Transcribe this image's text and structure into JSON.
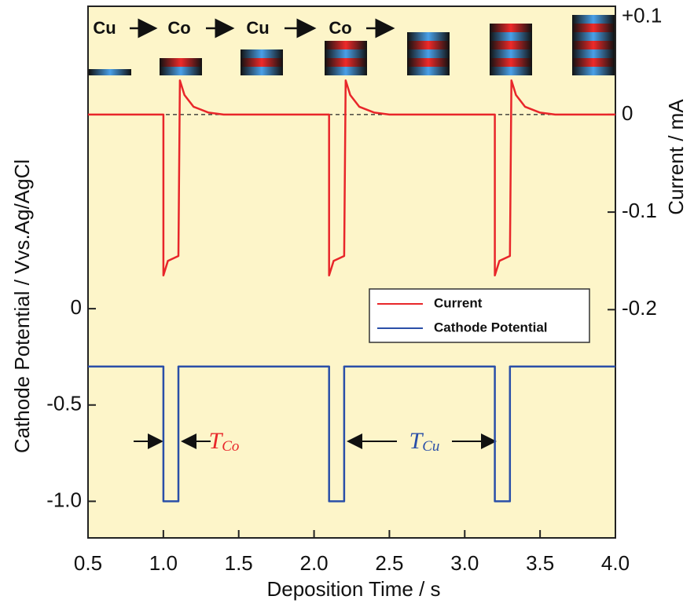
{
  "chart_data": {
    "type": "line",
    "xlabel": "Deposition Time / s",
    "ylabel": "Cathode Potential / Vvs.Ag/AgCl",
    "y2label": "Current / mA",
    "xlim": [
      0.5,
      4.0
    ],
    "xticks": [
      0.5,
      {
        "value": 1,
        "label": "1.0"
      },
      1.5,
      {
        "value": 2,
        "label": "2.0"
      },
      2.5,
      {
        "value": 3,
        "label": "3.0"
      },
      3.5,
      {
        "value": 4,
        "label": "4.0"
      }
    ],
    "ylim": [
      -1.19,
      1.57
    ],
    "yticks": [
      0,
      -0.5,
      {
        "value": -1,
        "label": "-1.0"
      }
    ],
    "y2lim": [
      -0.434,
      0.111
    ],
    "y2ticks": [
      {
        "value": 0.1,
        "label": "+0.1"
      },
      0,
      -0.1,
      -0.2
    ],
    "legend": "center-right",
    "series": [
      {
        "name": "Current",
        "color": "#e8262a",
        "axis": "y2",
        "x": [
          0.5,
          1.0,
          1.0,
          1.03,
          1.1,
          1.11,
          1.14,
          1.2,
          1.3,
          1.4,
          2.1,
          2.1,
          2.13,
          2.2,
          2.21,
          2.24,
          2.3,
          2.4,
          2.5,
          3.2,
          3.2,
          3.23,
          3.3,
          3.31,
          3.34,
          3.4,
          3.5,
          3.6,
          4.0
        ],
        "values": [
          0,
          0,
          -0.165,
          -0.15,
          -0.145,
          0.035,
          0.02,
          0.008,
          0.002,
          0,
          0,
          -0.165,
          -0.15,
          -0.145,
          0.035,
          0.02,
          0.008,
          0.002,
          0,
          0,
          -0.165,
          -0.15,
          -0.145,
          0.035,
          0.02,
          0.008,
          0.002,
          0,
          0
        ]
      },
      {
        "name": "Cathode Potential",
        "color": "#2a4fa8",
        "x": [
          0.5,
          1.0,
          1.0,
          1.1,
          1.1,
          2.1,
          2.1,
          2.2,
          2.2,
          3.2,
          3.2,
          3.3,
          3.3,
          4.0
        ],
        "values": [
          -0.3,
          -0.3,
          -1,
          -1,
          -0.3,
          -0.3,
          -1,
          -1,
          -0.3,
          -0.3,
          -1,
          -1,
          -0.3,
          -0.3
        ]
      }
    ],
    "deposition_sequence": [
      {
        "text": "Cu",
        "color": "#2a4fa8"
      },
      {
        "text": "Co",
        "color": "#e8262a"
      },
      {
        "text": "Cu",
        "color": "#2a4fa8"
      },
      {
        "text": "Co",
        "color": "#e8262a"
      }
    ],
    "annotations": [
      {
        "text": "T",
        "subscript": "Co",
        "color": "#e8262a"
      },
      {
        "text": "T",
        "subscript": "Cu",
        "color": "#2a4fa8"
      }
    ]
  }
}
